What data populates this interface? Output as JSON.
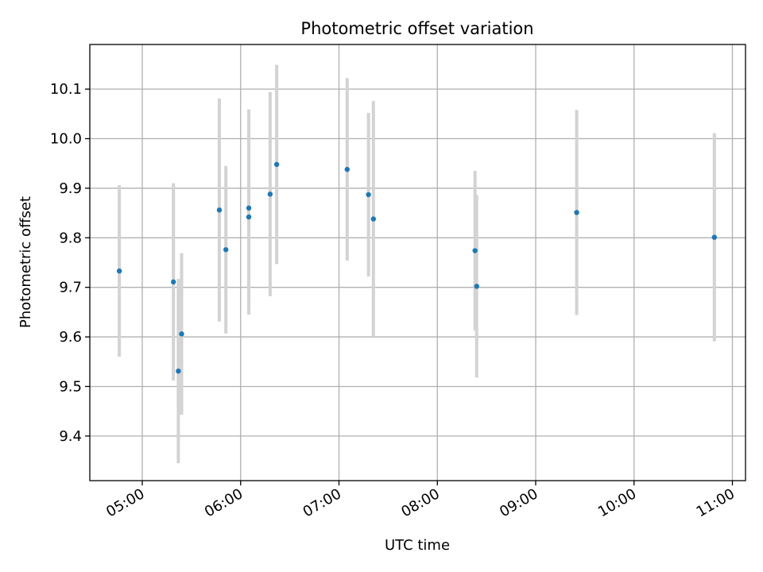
{
  "chart_data": {
    "type": "scatter",
    "title": "Photometric offset variation",
    "xlabel": "UTC time",
    "ylabel": "Photometric offset",
    "x_ticks": [
      "05:00",
      "06:00",
      "07:00",
      "08:00",
      "09:00",
      "10:00",
      "11:00"
    ],
    "y_ticks": [
      "9.4",
      "9.5",
      "9.6",
      "9.7",
      "9.8",
      "9.9",
      "10.0",
      "10.1"
    ],
    "xlim": [
      "04:28",
      "11:08"
    ],
    "ylim": [
      9.31,
      10.19
    ],
    "grid": true,
    "marker_color": "#1f77b4",
    "errorbar_color": "#d3d3d3",
    "series": [
      {
        "points": [
          {
            "x": "04:46",
            "y": 9.733,
            "err": 0.173
          },
          {
            "x": "05:19",
            "y": 9.711,
            "err": 0.199
          },
          {
            "x": "05:22",
            "y": 9.531,
            "err": 0.186
          },
          {
            "x": "05:24",
            "y": 9.606,
            "err": 0.163
          },
          {
            "x": "05:47",
            "y": 9.856,
            "err": 0.225
          },
          {
            "x": "05:51",
            "y": 9.776,
            "err": 0.169
          },
          {
            "x": "06:05",
            "y": 9.86,
            "err": 0.199
          },
          {
            "x": "06:05",
            "y": 9.842,
            "err": 0.197
          },
          {
            "x": "06:18",
            "y": 9.888,
            "err": 0.206
          },
          {
            "x": "06:22",
            "y": 9.948,
            "err": 0.201
          },
          {
            "x": "07:05",
            "y": 9.938,
            "err": 0.184
          },
          {
            "x": "07:18",
            "y": 9.887,
            "err": 0.165
          },
          {
            "x": "07:21",
            "y": 9.838,
            "err": 0.238
          },
          {
            "x": "08:23",
            "y": 9.774,
            "err": 0.161
          },
          {
            "x": "08:24",
            "y": 9.702,
            "err": 0.184
          },
          {
            "x": "09:25",
            "y": 9.851,
            "err": 0.207
          },
          {
            "x": "10:49",
            "y": 9.801,
            "err": 0.21
          }
        ]
      }
    ]
  }
}
